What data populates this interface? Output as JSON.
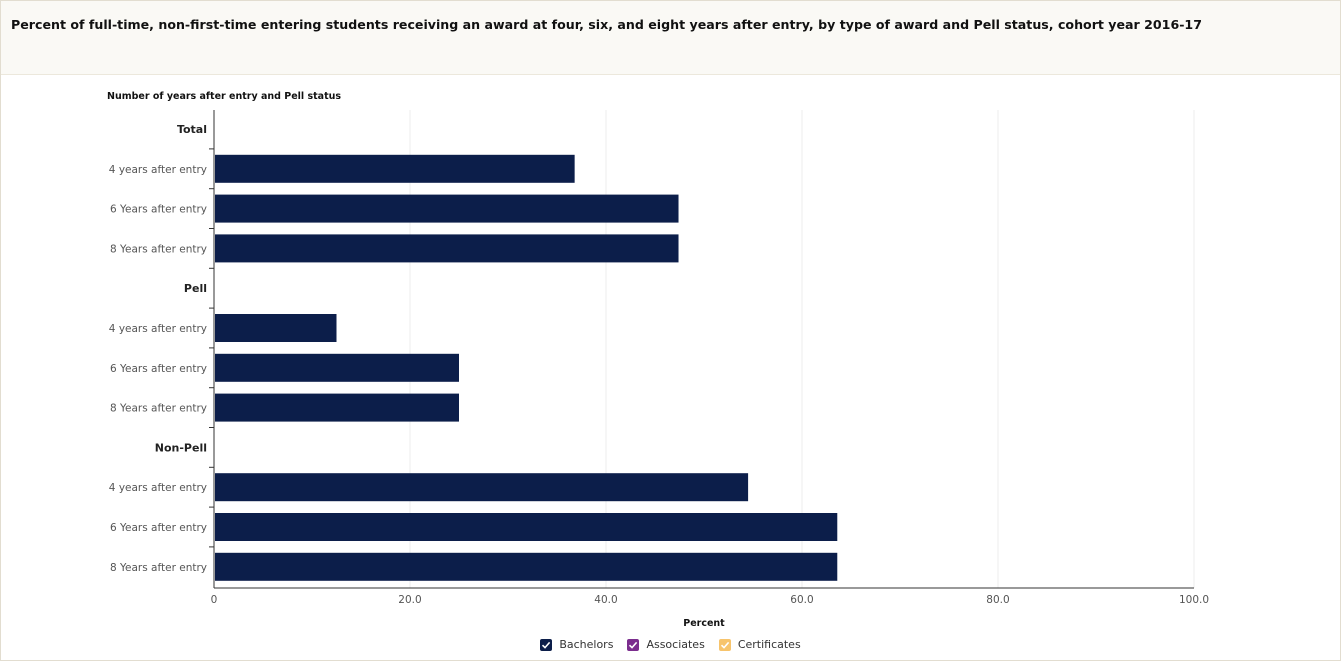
{
  "header": {
    "title": "Percent of full-time, non-first-time entering students receiving an award at four, six, and eight years after entry, by type of award and Pell status, cohort year 2016-17"
  },
  "chart_data": {
    "type": "bar",
    "orientation": "horizontal",
    "ylabel": "Number of years after entry and Pell status",
    "xlabel": "Percent",
    "xlim": [
      0,
      100
    ],
    "xticks": [
      "0",
      "20.0",
      "40.0",
      "60.0",
      "80.0",
      "100.0"
    ],
    "grid": "vertical",
    "legend_placement": "bottom-center",
    "groups": [
      {
        "label": "Total",
        "rows": [
          {
            "label": "4 years after entry",
            "value": 36.8
          },
          {
            "label": "6 Years after entry",
            "value": 47.4
          },
          {
            "label": "8 Years after entry",
            "value": 47.4
          }
        ]
      },
      {
        "label": "Pell",
        "rows": [
          {
            "label": "4 years after entry",
            "value": 12.5
          },
          {
            "label": "6 Years after entry",
            "value": 25.0
          },
          {
            "label": "8 Years after entry",
            "value": 25.0
          }
        ]
      },
      {
        "label": "Non-Pell",
        "rows": [
          {
            "label": "4 years after entry",
            "value": 54.5
          },
          {
            "label": "6 Years after entry",
            "value": 63.6
          },
          {
            "label": "8 Years after entry",
            "value": 63.6
          }
        ]
      }
    ],
    "series": [
      {
        "name": "Bachelors",
        "color": "#0c1e4a"
      },
      {
        "name": "Associates",
        "color": "#7b2d8e"
      },
      {
        "name": "Certificates",
        "color": "#f7c46c"
      }
    ]
  }
}
